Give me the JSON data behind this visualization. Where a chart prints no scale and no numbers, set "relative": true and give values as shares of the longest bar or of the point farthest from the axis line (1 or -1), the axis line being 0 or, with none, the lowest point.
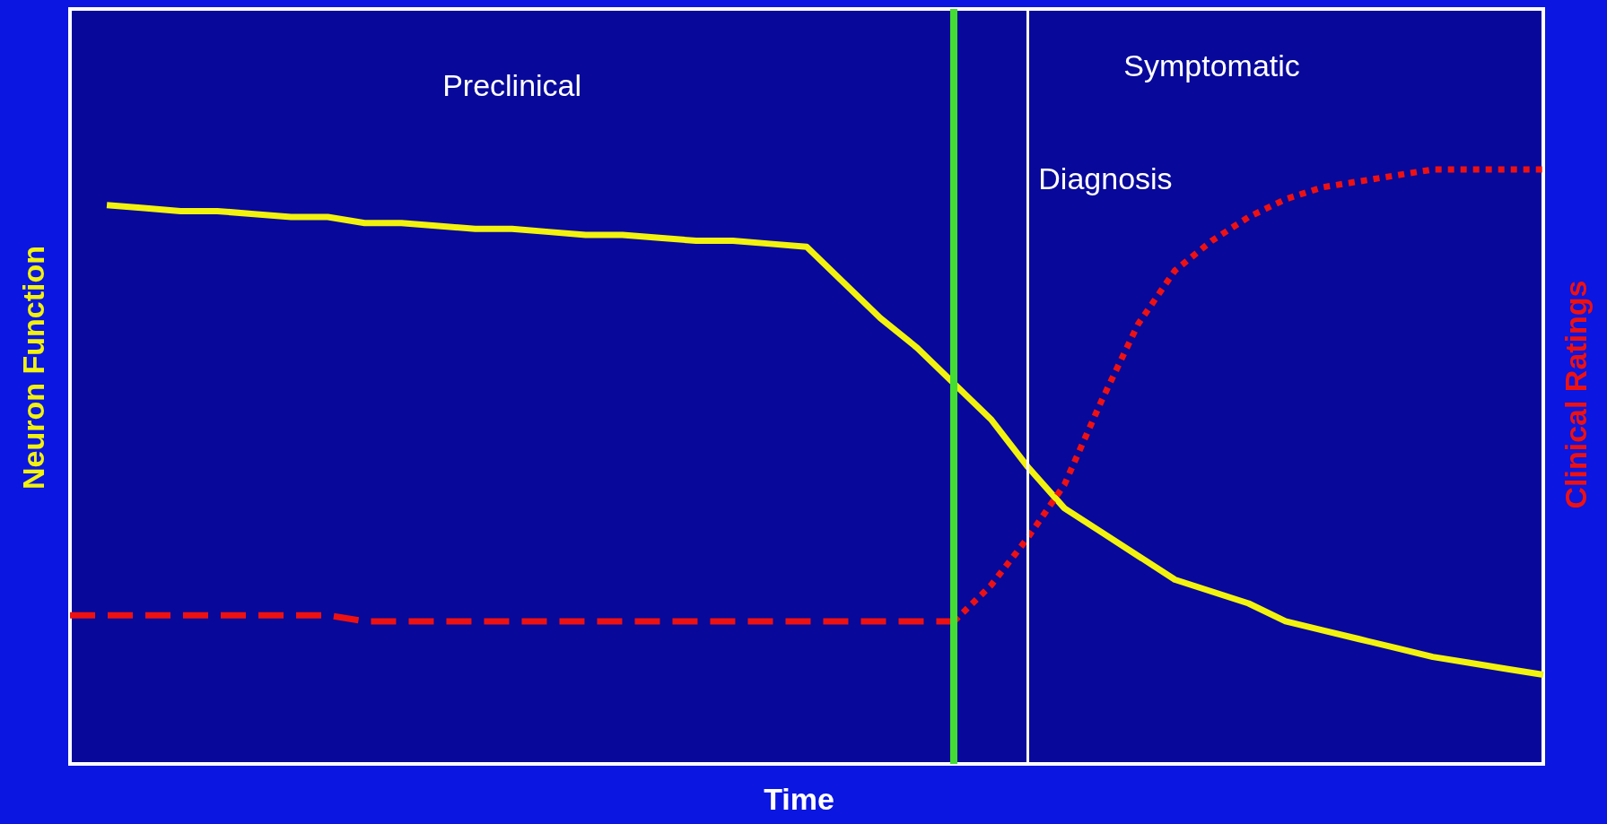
{
  "chart_data": {
    "type": "line",
    "relative": true,
    "xlabel": "Time",
    "ylabel": "Neuron Function",
    "y2label": "Clinical Ratings",
    "marker": "none",
    "categories": [
      null,
      null,
      null,
      null,
      null,
      null,
      null,
      null,
      null,
      null,
      null,
      null,
      null,
      null,
      null,
      null,
      null,
      null,
      null,
      null,
      null,
      null,
      null,
      null,
      null,
      null,
      null,
      null,
      null,
      null,
      null,
      null,
      null,
      null,
      null,
      null,
      null,
      null,
      null,
      null,
      null
    ],
    "annotations": [
      "Preclinical",
      "Symptomatic"
    ],
    "ref_lines": [
      {
        "axis": "x",
        "color": "#44dd33"
      },
      {
        "axis": "x",
        "label": "Diagnosis",
        "color": "#ffffff"
      }
    ],
    "series": [
      {
        "color": "#f2f20f",
        "line_style": "solid",
        "values": [
          null,
          0.94,
          0.935,
          0.93,
          0.93,
          0.925,
          0.92,
          0.92,
          0.91,
          0.91,
          0.905,
          0.9,
          0.9,
          0.895,
          0.89,
          0.89,
          0.885,
          0.88,
          0.88,
          0.875,
          0.87,
          0.81,
          0.75,
          0.7,
          0.64,
          0.58,
          0.5,
          0.43,
          0.39,
          0.35,
          0.31,
          0.29,
          0.27,
          0.24,
          0.225,
          0.21,
          0.195,
          0.18,
          0.17,
          0.16,
          0.15
        ]
      },
      {
        "color": "#ee1111",
        "line_style": "dashed",
        "values": [
          0.25,
          0.25,
          0.25,
          0.25,
          0.25,
          0.25,
          0.25,
          0.25,
          0.24,
          0.24,
          0.24,
          0.24,
          0.24,
          0.24,
          0.24,
          0.24,
          0.24,
          0.24,
          0.24,
          0.24,
          0.24,
          0.24,
          0.24,
          0.24,
          0.24,
          null,
          null,
          null,
          null,
          null,
          null,
          null,
          null,
          null,
          null,
          null,
          null,
          null,
          null,
          null,
          null
        ]
      },
      {
        "color": "#ee1111",
        "line_style": "dotted",
        "values": [
          null,
          null,
          null,
          null,
          null,
          null,
          null,
          null,
          null,
          null,
          null,
          null,
          null,
          null,
          null,
          null,
          null,
          null,
          null,
          null,
          null,
          null,
          null,
          null,
          0.24,
          0.3,
          0.38,
          0.47,
          0.61,
          0.74,
          0.83,
          0.88,
          0.92,
          0.95,
          0.97,
          0.98,
          0.99,
          1,
          1,
          1,
          1
        ]
      }
    ]
  }
}
